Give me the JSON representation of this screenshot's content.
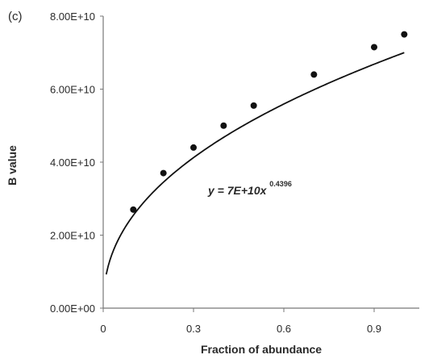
{
  "chart_data": {
    "type": "scatter",
    "panel_label": "(c)",
    "xlabel": "Fraction of abundance",
    "ylabel": "B value",
    "xlim": [
      0,
      1.05
    ],
    "ylim": [
      0,
      80000000000
    ],
    "x_ticks": [
      0,
      0.3,
      0.6,
      0.9
    ],
    "x_tick_labels": [
      "0",
      "0.3",
      "0.6",
      "0.9"
    ],
    "y_ticks": [
      0,
      20000000000,
      40000000000,
      60000000000,
      80000000000
    ],
    "y_tick_labels": [
      "0.00E+00",
      "2.00E+10",
      "4.00E+10",
      "6.00E+10",
      "8.00E+10"
    ],
    "series": [
      {
        "x": [
          0.1,
          0.2,
          0.3,
          0.4,
          0.5,
          0.7,
          0.9,
          1.0
        ],
        "y": [
          27000000000,
          37000000000,
          44000000000,
          50000000000,
          55500000000,
          64000000000,
          71500000000,
          75000000000
        ],
        "marker": "filled-circle",
        "color": "#111111"
      }
    ],
    "trendline": {
      "equation_main": "y = 7E+10x",
      "equation_exponent": "0.4396",
      "coefficient": 70000000000,
      "exponent": 0.4396,
      "x_range": [
        0.01,
        1.0
      ],
      "color": "#111111"
    },
    "grid": false
  }
}
